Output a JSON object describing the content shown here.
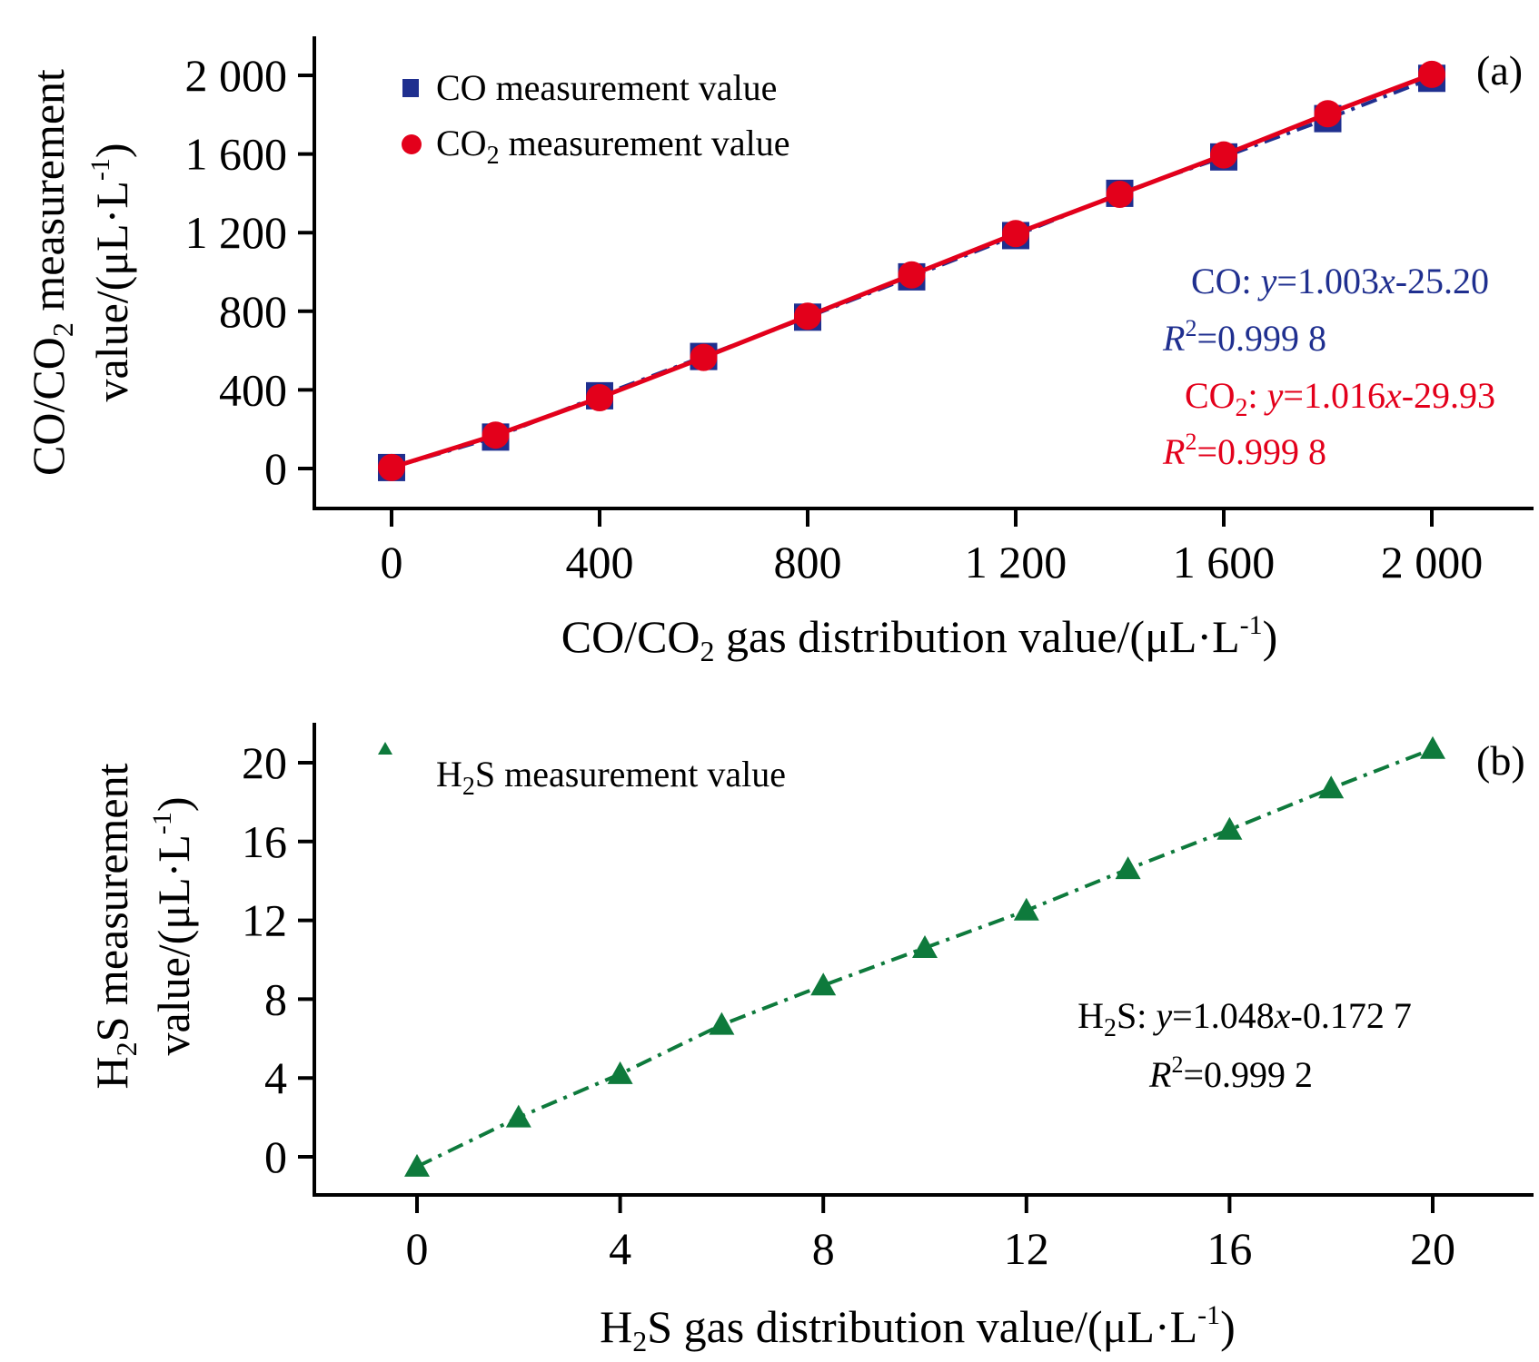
{
  "colors": {
    "co": "#1f2f8f",
    "co2": "#e3001b",
    "h2s": "#0e7a3c",
    "axis": "#000000"
  },
  "chart_data": [
    {
      "type": "scatter",
      "panel_label": "(a)",
      "title": "",
      "xlabel": "CO/CO₂ gas distribution value/(μL·L⁻¹)",
      "ylabel_line1": "CO/CO₂ measurement",
      "ylabel_line2": "value/(μL·L⁻¹)",
      "xlim": [
        -50,
        2200
      ],
      "ylim": [
        -200,
        2200
      ],
      "xticks": [
        0,
        400,
        800,
        1200,
        1600,
        2000
      ],
      "xtick_labels": [
        "0",
        "400",
        "800",
        "1 200",
        "1 600",
        "2 000"
      ],
      "yticks": [
        0,
        400,
        800,
        1200,
        1600,
        2000
      ],
      "ytick_labels": [
        "0",
        "400",
        "800",
        "1 200",
        "1 600",
        "2 000"
      ],
      "grid": false,
      "legend_position": "top-left",
      "x": [
        0,
        200,
        400,
        600,
        800,
        1000,
        1200,
        1400,
        1600,
        1800,
        2000
      ],
      "series": [
        {
          "name": "CO measurement value",
          "marker": "square",
          "color_key": "co",
          "line_style": "dash-dot",
          "values": [
            5,
            160,
            370,
            570,
            770,
            975,
            1185,
            1400,
            1585,
            1780,
            1985
          ],
          "fit": {
            "slope": 1.003,
            "intercept": -25.2,
            "r2": 0.9998
          }
        },
        {
          "name": "CO₂ measurement value",
          "marker": "circle",
          "color_key": "co2",
          "line_style": "solid",
          "values": [
            5,
            170,
            360,
            565,
            775,
            985,
            1195,
            1395,
            1595,
            1805,
            2005
          ],
          "fit": {
            "slope": 1.016,
            "intercept": -29.93,
            "r2": 0.9998
          }
        }
      ],
      "annotations": [
        {
          "series": "CO",
          "equation_prefix": "CO: ",
          "equation": "y=1.003x-25.20",
          "r2_text": "R²=0.999 8"
        },
        {
          "series": "CO2",
          "equation_prefix": "CO₂: ",
          "equation": "y=1.016x-29.93",
          "r2_text": "R²=0.999 8"
        }
      ]
    },
    {
      "type": "scatter",
      "panel_label": "(b)",
      "title": "",
      "xlabel": "H₂S gas distribution value/(μL·L⁻¹)",
      "ylabel_line1": "H₂S measurement",
      "ylabel_line2": "value/(μL·L⁻¹)",
      "xlim": [
        -2.6,
        22.4
      ],
      "ylim": [
        -2,
        22
      ],
      "xticks": [
        0,
        4,
        8,
        12,
        16,
        20
      ],
      "xtick_labels": [
        "0",
        "4",
        "8",
        "12",
        "16",
        "20"
      ],
      "yticks": [
        0,
        4,
        8,
        12,
        16,
        20
      ],
      "ytick_labels": [
        "0",
        "4",
        "8",
        "12",
        "16",
        "20"
      ],
      "grid": false,
      "legend_position": "top-left",
      "x": [
        0,
        2,
        4,
        6,
        8,
        10,
        12,
        14,
        16,
        18,
        20
      ],
      "series": [
        {
          "name": "H₂S measurement value",
          "marker": "triangle",
          "color_key": "h2s",
          "line_style": "dash-dot",
          "values": [
            -0.5,
            2.0,
            4.2,
            6.7,
            8.7,
            10.6,
            12.5,
            14.6,
            16.6,
            18.7,
            20.7
          ],
          "fit": {
            "slope": 1.048,
            "intercept": -0.1727,
            "r2": 0.9992
          }
        }
      ],
      "annotations": [
        {
          "series": "H2S",
          "equation_prefix": "H₂S: ",
          "equation": "y=1.048x-0.172 7",
          "r2_text": "R²=0.999 2"
        }
      ]
    }
  ]
}
